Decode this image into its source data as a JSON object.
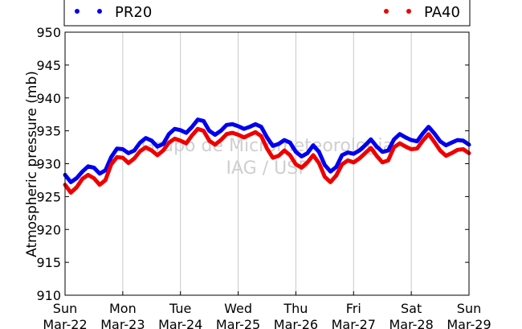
{
  "chart_data": {
    "type": "line",
    "ylabel": "Atmospheric pressure (mb)",
    "ylim": [
      910,
      950
    ],
    "yticks": [
      "910",
      "915",
      "920",
      "925",
      "930",
      "935",
      "940",
      "945",
      "950"
    ],
    "xlim": [
      0,
      7
    ],
    "xticks": [
      {
        "day": "Sun",
        "date": "Mar-22"
      },
      {
        "day": "Mon",
        "date": "Mar-23"
      },
      {
        "day": "Tue",
        "date": "Mar-24"
      },
      {
        "day": "Wed",
        "date": "Mar-25"
      },
      {
        "day": "Thu",
        "date": "Mar-26"
      },
      {
        "day": "Fri",
        "date": "Mar-27"
      },
      {
        "day": "Sat",
        "date": "Mar-28"
      },
      {
        "day": "Sun",
        "date": "Mar-29"
      }
    ],
    "grid": "vertical",
    "legend": "top",
    "watermark": [
      "Grupo de Micrometeorologia",
      "IAG / USP"
    ],
    "series": [
      {
        "name": "PR20",
        "color": "#0000ee",
        "x": [
          0,
          0.1,
          0.2,
          0.3,
          0.4,
          0.5,
          0.6,
          0.7,
          0.8,
          0.9,
          1.0,
          1.1,
          1.2,
          1.3,
          1.4,
          1.5,
          1.6,
          1.7,
          1.8,
          1.9,
          2.0,
          2.1,
          2.2,
          2.3,
          2.4,
          2.5,
          2.6,
          2.7,
          2.8,
          2.9,
          3.0,
          3.1,
          3.2,
          3.3,
          3.4,
          3.5,
          3.6,
          3.7,
          3.8,
          3.9,
          4.0,
          4.1,
          4.2,
          4.3,
          4.4,
          4.5,
          4.6,
          4.7,
          4.8,
          4.9,
          5.0,
          5.1,
          5.2,
          5.3,
          5.4,
          5.5,
          5.6,
          5.7,
          5.8,
          5.9,
          6.0,
          6.1,
          6.2,
          6.3,
          6.4,
          6.5,
          6.6,
          6.7,
          6.8,
          6.9,
          7.0
        ],
        "y": [
          928.3,
          927.2,
          927.8,
          928.8,
          929.6,
          929.4,
          928.5,
          929.0,
          931.0,
          932.3,
          932.2,
          931.6,
          932.0,
          933.2,
          933.9,
          933.5,
          932.6,
          933.0,
          934.5,
          935.3,
          935.1,
          934.7,
          935.6,
          936.7,
          936.5,
          935.0,
          934.4,
          935.0,
          935.9,
          936.0,
          935.7,
          935.3,
          935.6,
          936.0,
          935.6,
          934.0,
          932.7,
          933.0,
          933.6,
          933.2,
          931.8,
          931.1,
          931.6,
          932.8,
          931.8,
          929.8,
          928.8,
          929.5,
          931.3,
          931.7,
          931.5,
          932.0,
          932.8,
          933.7,
          932.6,
          931.8,
          932.0,
          933.7,
          934.5,
          934.0,
          933.6,
          933.4,
          934.6,
          935.6,
          934.6,
          933.4,
          932.8,
          933.2,
          933.6,
          933.5,
          932.9
        ]
      },
      {
        "name": "PA40",
        "color": "#ee0000",
        "x": [
          0,
          0.1,
          0.2,
          0.3,
          0.4,
          0.5,
          0.6,
          0.7,
          0.8,
          0.9,
          1.0,
          1.1,
          1.2,
          1.3,
          1.4,
          1.5,
          1.6,
          1.7,
          1.8,
          1.9,
          2.0,
          2.1,
          2.2,
          2.3,
          2.4,
          2.5,
          2.6,
          2.7,
          2.8,
          2.9,
          3.0,
          3.1,
          3.2,
          3.3,
          3.4,
          3.5,
          3.6,
          3.7,
          3.8,
          3.9,
          4.0,
          4.1,
          4.2,
          4.3,
          4.4,
          4.5,
          4.6,
          4.7,
          4.8,
          4.9,
          5.0,
          5.1,
          5.2,
          5.3,
          5.4,
          5.5,
          5.6,
          5.7,
          5.8,
          5.9,
          6.0,
          6.1,
          6.2,
          6.3,
          6.4,
          6.5,
          6.6,
          6.7,
          6.8,
          6.9,
          7.0
        ],
        "y": [
          926.8,
          925.6,
          926.4,
          927.7,
          928.3,
          927.8,
          926.8,
          927.5,
          929.9,
          931.0,
          930.9,
          930.1,
          930.8,
          931.9,
          932.5,
          932.0,
          931.3,
          932.0,
          933.2,
          933.8,
          933.5,
          933.1,
          934.3,
          935.3,
          935.0,
          933.5,
          932.9,
          933.6,
          934.5,
          934.7,
          934.4,
          934.0,
          934.4,
          934.8,
          934.2,
          932.3,
          930.9,
          931.2,
          932.0,
          931.3,
          929.9,
          929.4,
          930.2,
          931.3,
          930.1,
          928.0,
          927.2,
          928.2,
          929.9,
          930.5,
          930.2,
          930.8,
          931.6,
          932.4,
          931.2,
          930.2,
          930.5,
          932.5,
          933.1,
          932.6,
          932.2,
          932.3,
          933.5,
          934.5,
          933.3,
          932.0,
          931.2,
          931.6,
          932.1,
          932.2,
          931.6
        ]
      }
    ]
  }
}
